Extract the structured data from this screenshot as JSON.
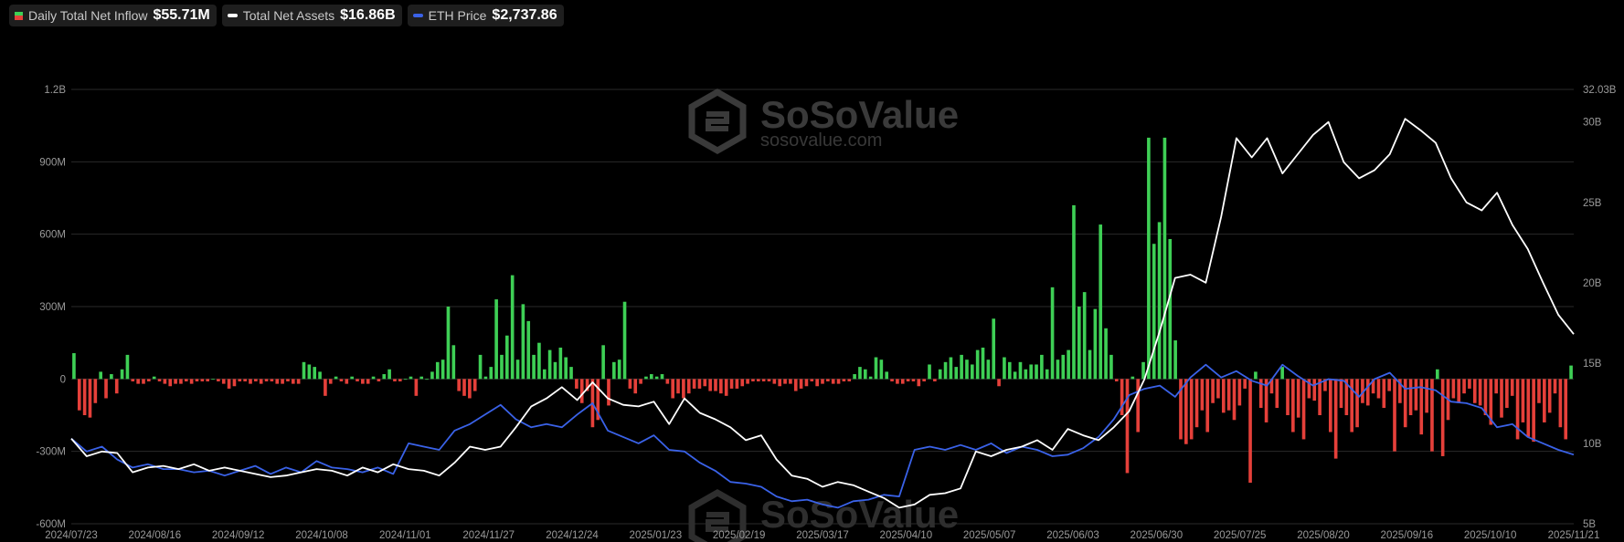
{
  "legend": {
    "inflow": {
      "label": "Daily Total Net Inflow",
      "value": "$55.71M"
    },
    "assets": {
      "label": "Total Net Assets",
      "value": "$16.86B"
    },
    "eth": {
      "label": "ETH Price",
      "value": "$2,737.86"
    }
  },
  "watermark": {
    "brand": "SoSoValue",
    "domain": "sosovalue.com"
  },
  "colors": {
    "positive": "#3ecf55",
    "negative": "#e5403a",
    "assets_line": "#ffffff",
    "eth_line": "#3a62e8",
    "grid": "#2a2a2a"
  },
  "chart_data": {
    "type": "bar",
    "x_ticks": [
      "2024/07/23",
      "2024/08/16",
      "2024/09/12",
      "2024/10/08",
      "2024/11/01",
      "2024/11/27",
      "2024/12/24",
      "2025/01/23",
      "2025/02/19",
      "2025/03/17",
      "2025/04/10",
      "2025/05/07",
      "2025/06/03",
      "2025/06/30",
      "2025/07/25",
      "2025/08/20",
      "2025/09/16",
      "2025/10/10",
      "2025/11/21"
    ],
    "y_left_ticks": [
      "1.2B",
      "900M",
      "600M",
      "300M",
      "0",
      "-300M",
      "-600M"
    ],
    "y_left_range": [
      -600,
      1200
    ],
    "y_right_ticks": [
      "32.03B",
      "30B",
      "25B",
      "20B",
      "15B",
      "10B",
      "5B"
    ],
    "y_right_range": [
      5,
      32.03
    ],
    "grid": true,
    "legend_position": "top-left",
    "series": [
      {
        "name": "Daily Total Net Inflow",
        "unit": "M",
        "type": "bar",
        "values": [
          107,
          -130,
          -150,
          -160,
          -100,
          30,
          -80,
          20,
          -60,
          40,
          100,
          -10,
          -20,
          -20,
          -10,
          10,
          -10,
          -20,
          -30,
          -20,
          -20,
          -10,
          -20,
          -10,
          -10,
          -10,
          0,
          -10,
          -20,
          -40,
          -30,
          -10,
          -10,
          -20,
          -10,
          -20,
          -10,
          -10,
          -20,
          -20,
          -10,
          -20,
          -20,
          70,
          60,
          50,
          30,
          -70,
          -20,
          10,
          -10,
          -20,
          10,
          -10,
          -20,
          -20,
          10,
          -10,
          20,
          40,
          -10,
          -10,
          0,
          10,
          -70,
          10,
          0,
          30,
          70,
          80,
          300,
          140,
          -50,
          -70,
          -80,
          -50,
          100,
          10,
          50,
          330,
          100,
          180,
          430,
          80,
          310,
          240,
          100,
          150,
          40,
          120,
          70,
          130,
          90,
          50,
          -40,
          -100,
          -50,
          -200,
          -170,
          140,
          -110,
          70,
          80,
          320,
          -40,
          -60,
          -20,
          10,
          20,
          10,
          20,
          -20,
          -80,
          -60,
          -80,
          -60,
          -40,
          -40,
          -30,
          -50,
          -50,
          -60,
          -70,
          -40,
          -40,
          -30,
          -20,
          -10,
          -10,
          -10,
          -10,
          -20,
          -30,
          -20,
          -20,
          -50,
          -40,
          -30,
          -10,
          -30,
          -20,
          -10,
          -20,
          -20,
          -10,
          -10,
          20,
          50,
          40,
          10,
          90,
          80,
          30,
          -10,
          -20,
          -20,
          -10,
          -10,
          -30,
          -10,
          60,
          -10,
          40,
          70,
          90,
          50,
          100,
          80,
          60,
          120,
          130,
          80,
          250,
          -30,
          90,
          70,
          30,
          70,
          40,
          60,
          60,
          100,
          40,
          380,
          80,
          100,
          120,
          720,
          300,
          360,
          120,
          290,
          640,
          210,
          100,
          -10,
          -150,
          -390,
          10,
          -220,
          70,
          1000,
          560,
          650,
          1000,
          580,
          160,
          -250,
          -270,
          -250,
          -200,
          -130,
          -220,
          -100,
          -80,
          -140,
          -130,
          -170,
          -110,
          -40,
          -430,
          30,
          -120,
          -180,
          -60,
          -120,
          50,
          -150,
          -220,
          -160,
          -250,
          -80,
          -90,
          -150,
          -50,
          -220,
          -330,
          -120,
          -150,
          -220,
          -200,
          -100,
          -110,
          -60,
          -80,
          -120,
          -50,
          -300,
          -100,
          -200,
          -150,
          -130,
          -230,
          -140,
          -300,
          40,
          -320,
          -170,
          -80,
          -100,
          -60,
          -40,
          -100,
          -110,
          -150,
          -190,
          -60,
          -160,
          -120,
          -70,
          -250,
          -180,
          -240,
          -260,
          -100,
          -180,
          -140,
          -60,
          -200,
          -250,
          55.71
        ]
      },
      {
        "name": "Total Net Assets",
        "unit": "B",
        "type": "line",
        "axis": "right",
        "x_start": "2024/07/23",
        "x_end": "2025/11/21",
        "values": [
          10.3,
          9.2,
          9.5,
          9.4,
          8.2,
          8.5,
          8.6,
          8.4,
          8.7,
          8.3,
          8.5,
          8.3,
          8.1,
          7.9,
          8.0,
          8.2,
          8.4,
          8.3,
          8.0,
          8.5,
          8.2,
          8.7,
          8.4,
          8.3,
          8.0,
          8.8,
          9.8,
          9.6,
          9.8,
          11.0,
          12.3,
          12.8,
          13.5,
          12.7,
          13.8,
          12.8,
          12.4,
          12.3,
          12.6,
          11.2,
          12.8,
          11.9,
          11.5,
          11.0,
          10.2,
          10.5,
          9.0,
          8.0,
          7.8,
          7.3,
          7.6,
          7.4,
          7.0,
          6.6,
          6.0,
          6.2,
          6.8,
          6.9,
          7.2,
          9.5,
          9.2,
          9.6,
          9.8,
          10.2,
          9.6,
          10.9,
          10.5,
          10.2,
          11.0,
          12.0,
          14.0,
          17.0,
          20.3,
          20.5,
          20.0,
          24.1,
          29.0,
          27.8,
          29.0,
          26.8,
          28.0,
          29.2,
          30.0,
          27.5,
          26.5,
          27.0,
          28.0,
          30.2,
          29.5,
          28.7,
          26.5,
          25.0,
          24.5,
          25.6,
          23.6,
          22.1,
          20.0,
          18.0,
          16.8
        ]
      },
      {
        "name": "ETH Price",
        "type": "line",
        "axis": "right",
        "x_start": "2024/07/23",
        "x_end": "2025/11/21",
        "values": [
          10.3,
          9.5,
          9.8,
          9.0,
          8.5,
          8.7,
          8.4,
          8.4,
          8.2,
          8.3,
          8.0,
          8.3,
          8.6,
          8.1,
          8.5,
          8.2,
          8.9,
          8.5,
          8.4,
          8.2,
          8.5,
          8.1,
          10.0,
          9.8,
          9.6,
          10.8,
          11.2,
          11.8,
          12.4,
          11.5,
          11.0,
          11.2,
          11.0,
          11.8,
          12.5,
          10.8,
          10.4,
          10.0,
          10.5,
          9.6,
          9.5,
          8.8,
          8.3,
          7.6,
          7.5,
          7.3,
          6.7,
          6.4,
          6.5,
          6.2,
          6.0,
          6.4,
          6.5,
          6.8,
          6.7,
          9.6,
          9.8,
          9.6,
          9.9,
          9.6,
          10.0,
          9.4,
          9.8,
          9.6,
          9.2,
          9.3,
          9.7,
          10.4,
          11.5,
          13.0,
          13.4,
          13.6,
          12.9,
          14.1,
          14.9,
          14.1,
          14.5,
          13.9,
          13.6,
          14.9,
          14.2,
          13.6,
          14.0,
          13.9,
          12.9,
          14.0,
          14.4,
          13.4,
          13.5,
          13.3,
          12.6,
          12.5,
          12.2,
          11.0,
          11.2,
          10.4,
          10.0,
          9.6,
          9.3
        ]
      }
    ]
  }
}
